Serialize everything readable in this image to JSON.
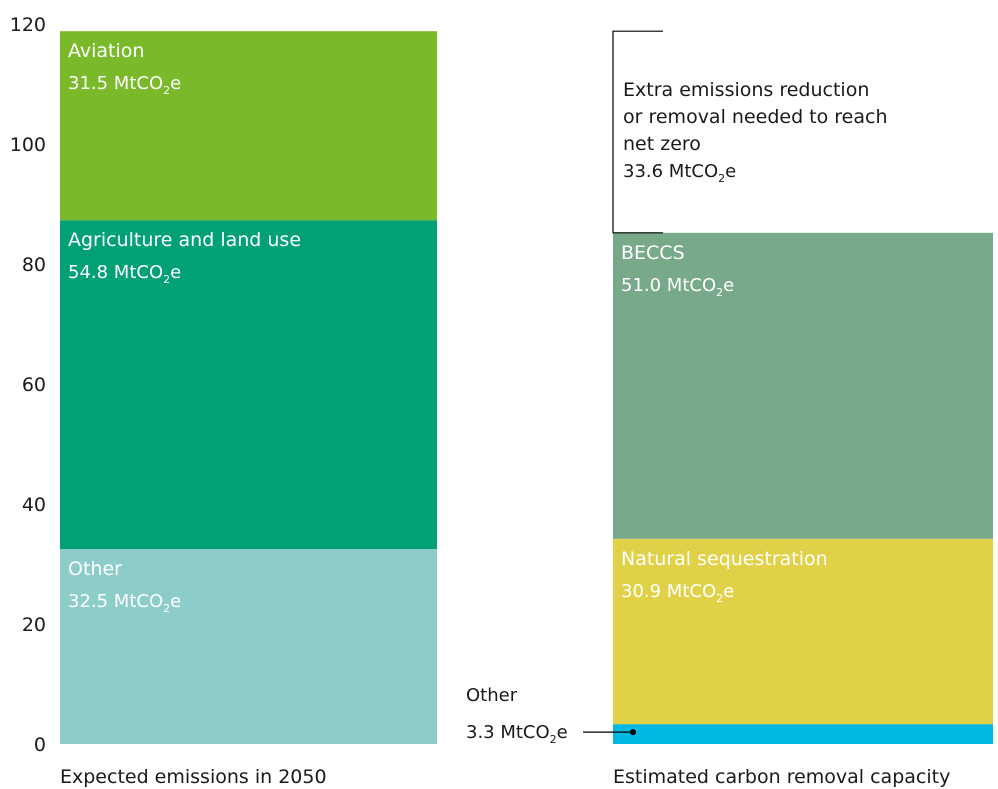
{
  "chart_data": {
    "type": "bar",
    "ylim": [
      0,
      120
    ],
    "yticks": [
      0,
      20,
      40,
      60,
      80,
      100,
      120
    ],
    "unit_base": "MtCO",
    "unit_sub": "2",
    "unit_end": "e",
    "bars": [
      {
        "label": "Expected emissions in 2050",
        "segments": [
          {
            "name": "Other",
            "value": 32.5,
            "value_text": "32.5",
            "color": "#8dcdc9"
          },
          {
            "name": "Agriculture and land use",
            "value": 54.8,
            "value_text": "54.8",
            "color": "#02a075"
          },
          {
            "name": "Aviation",
            "value": 31.5,
            "value_text": "31.5",
            "color": "#7ab92a"
          }
        ]
      },
      {
        "label": "Estimated carbon removal capacity",
        "segments": [
          {
            "name": "Other",
            "value": 3.3,
            "value_text": "3.3",
            "color": "#00b9e3"
          },
          {
            "name": "Natural sequestration",
            "value": 30.9,
            "value_text": "30.9",
            "color": "#e0d149"
          },
          {
            "name": "BECCS",
            "value": 51.0,
            "value_text": "51.0",
            "color": "#78a98b"
          }
        ],
        "gap": {
          "lines": [
            "Extra emissions reduction",
            "or removal needed to reach",
            "net zero"
          ],
          "value": 33.6,
          "value_text": "33.6"
        }
      }
    ]
  }
}
